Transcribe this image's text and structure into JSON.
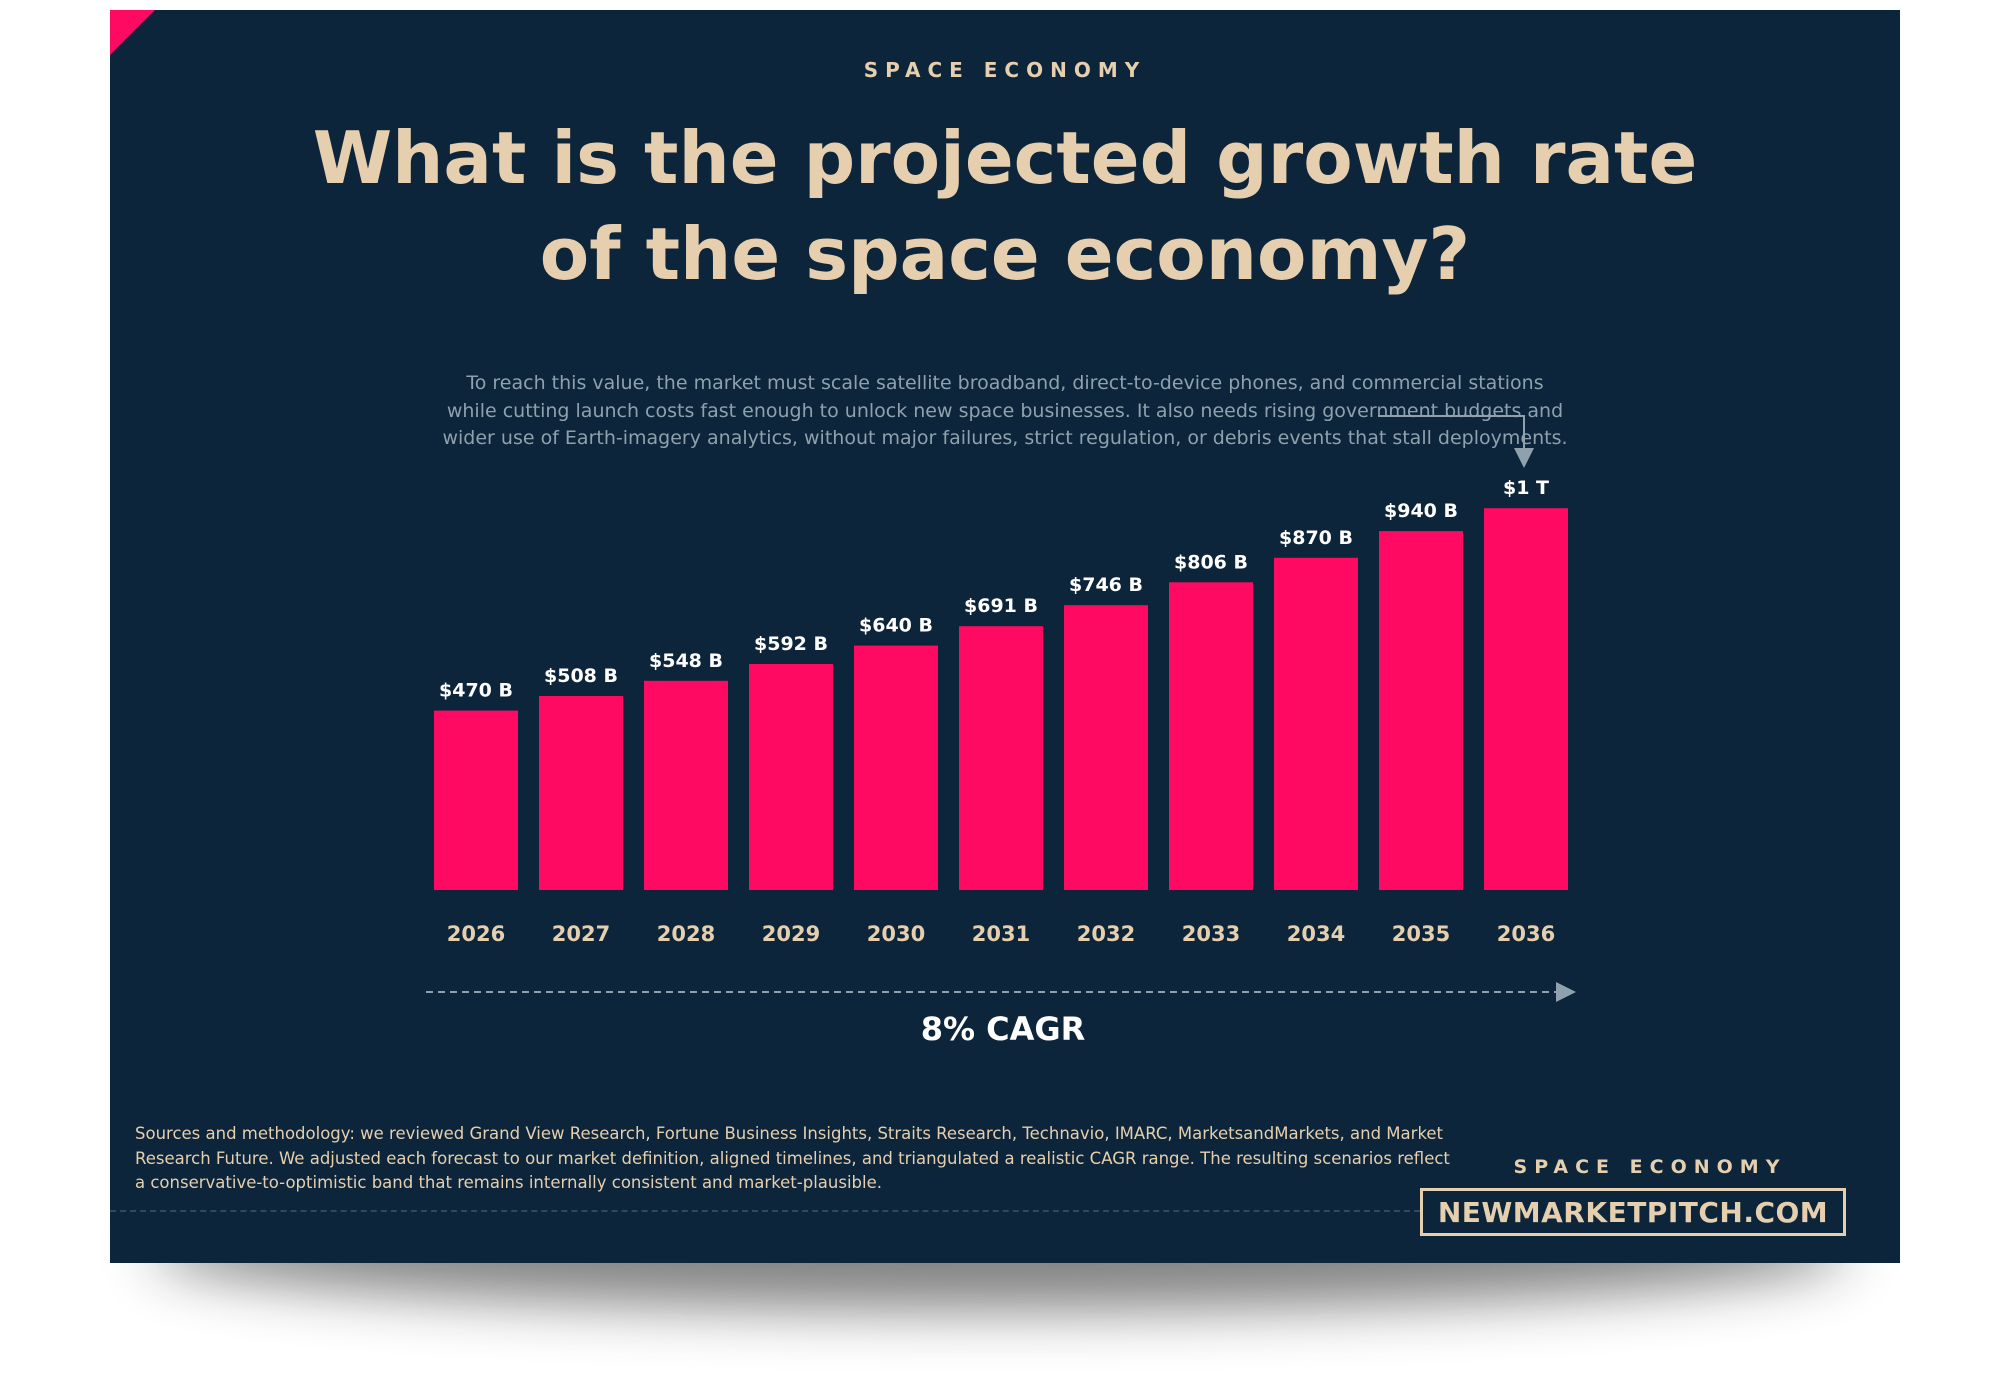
{
  "header": {
    "kicker": "SPACE ECONOMY",
    "title": "What is the projected growth rate of the space economy?",
    "description": "To reach this value, the market must scale satellite broadband, direct-to-device phones, and commercial stations while cutting launch costs fast enough to unlock new space businesses. It also needs rising government budgets and wider use of Earth-imagery analytics, without major failures, strict regulation, or debris events that stall deployments."
  },
  "chart_data": {
    "type": "bar",
    "categories": [
      "2026",
      "2027",
      "2028",
      "2029",
      "2030",
      "2031",
      "2032",
      "2033",
      "2034",
      "2035",
      "2036"
    ],
    "values": [
      470,
      508,
      548,
      592,
      640,
      691,
      746,
      806,
      870,
      940,
      1000
    ],
    "unit": "B",
    "data_labels": [
      "$470 B",
      "$508 B",
      "$548 B",
      "$592 B",
      "$640 B",
      "$691 B",
      "$746 B",
      "$806 B",
      "$870 B",
      "$940 B",
      "$1 T"
    ],
    "annotation": "8% CAGR",
    "bar_color": "#ff0a63",
    "label_color": "#ffffff",
    "tick_color": "#e6cfae",
    "grid": false,
    "legend": "none"
  },
  "footer": {
    "sources": "Sources and methodology: we reviewed Grand View Research, Fortune Business Insights, Straits Research, Technavio, IMARC, MarketsandMarkets, and Market Research Future. We adjusted each forecast to our market definition, aligned timelines, and triangulated a realistic CAGR range. The resulting scenarios reflect a conservative-to-optimistic band that remains internally consistent and market-plausible.",
    "brand_kicker": "SPACE ECONOMY",
    "brand_url": "NEWMARKETPITCH.COM"
  },
  "colors": {
    "background": "#0c253a",
    "accent": "#ff0a63",
    "cream": "#e6cfae",
    "muted": "#8fa1ad"
  }
}
